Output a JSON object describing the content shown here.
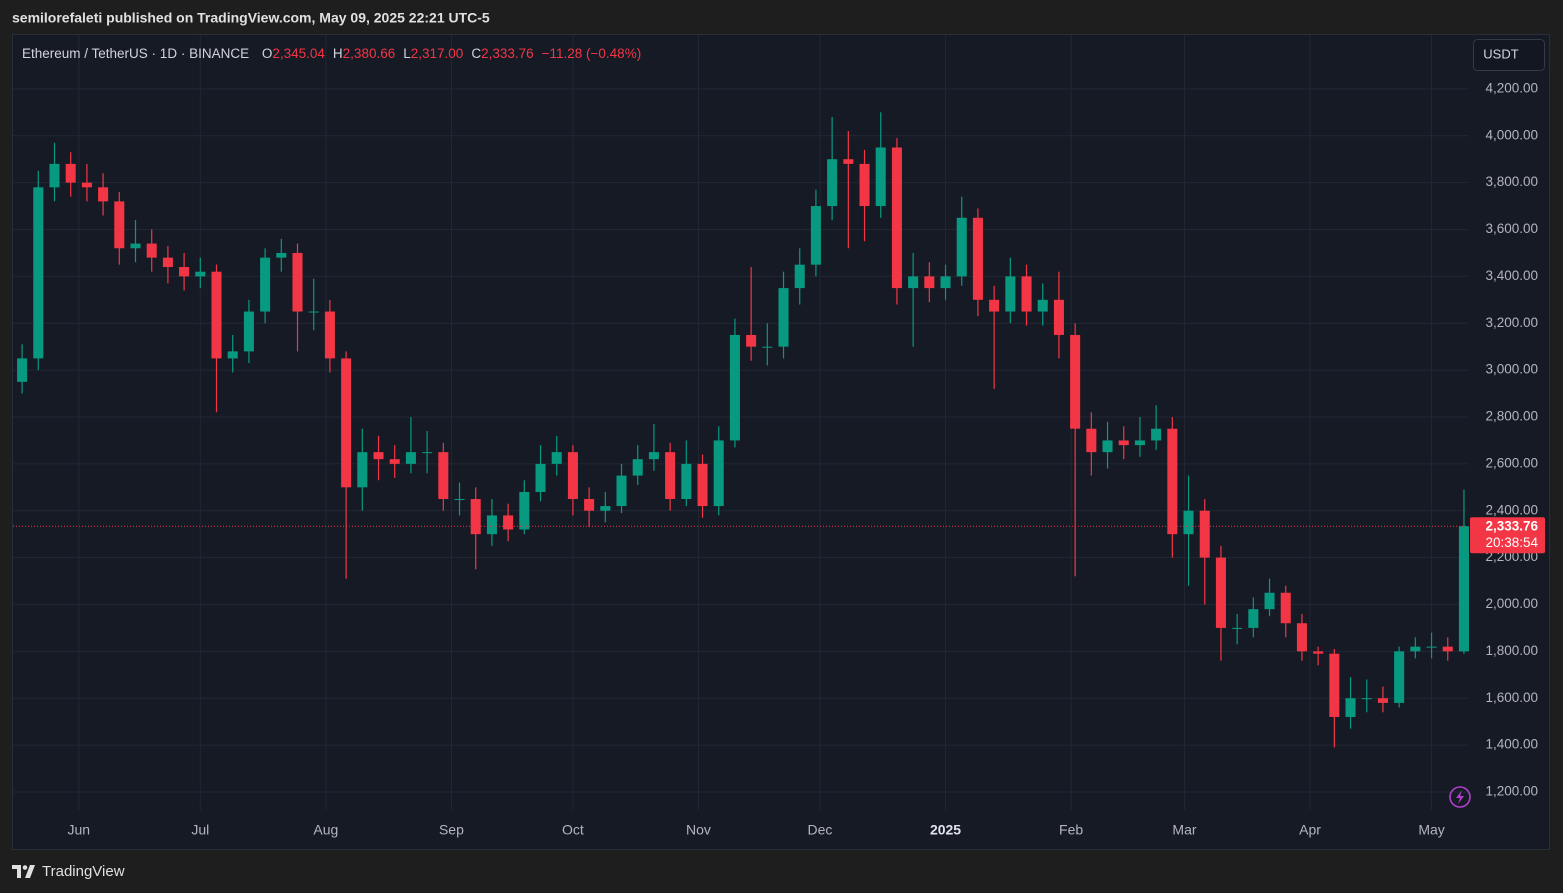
{
  "header": "semilorefaleti published on TradingView.com, May 09, 2025 22:21 UTC-5",
  "footer": "TradingView",
  "chart_data": {
    "type": "candlestick",
    "legend": {
      "symbol": "Ethereum / TetherUS · 1D · BINANCE",
      "ohlc": [
        {
          "key": "O",
          "value": 2345.04,
          "label": "2,345.04"
        },
        {
          "key": "H",
          "value": 2380.66,
          "label": "2,380.66"
        },
        {
          "key": "L",
          "value": 2317.0,
          "label": "2,317.00"
        },
        {
          "key": "C",
          "value": 2333.76,
          "label": "2,333.76"
        }
      ],
      "change": "−11.28 (−0.48%)"
    },
    "currency": "USDT",
    "countdown": "20:38:54",
    "up_color": "#089981",
    "down_color": "#f23645",
    "grid": true,
    "xlim": [
      0,
      359
    ],
    "xticks": [
      {
        "value": 16,
        "label": "Jun"
      },
      {
        "value": 46,
        "label": "Jul"
      },
      {
        "value": 77,
        "label": "Aug"
      },
      {
        "value": 108,
        "label": "Sep"
      },
      {
        "value": 138,
        "label": "Oct"
      },
      {
        "value": 169,
        "label": "Nov"
      },
      {
        "value": 199,
        "label": "Dec"
      },
      {
        "value": 230,
        "label": "2025"
      },
      {
        "value": 261,
        "label": "Feb"
      },
      {
        "value": 289,
        "label": "Mar"
      },
      {
        "value": 320,
        "label": "Apr"
      },
      {
        "value": 350,
        "label": "May"
      }
    ],
    "ylim": [
      1123,
      4430
    ],
    "yticks": [
      {
        "value": 1200,
        "label": "1,200.00"
      },
      {
        "value": 1400,
        "label": "1,400.00"
      },
      {
        "value": 1600,
        "label": "1,600.00"
      },
      {
        "value": 1800,
        "label": "1,800.00"
      },
      {
        "value": 2000,
        "label": "2,000.00"
      },
      {
        "value": 2200,
        "label": "2,200.00"
      },
      {
        "value": 2400,
        "label": "2,400.00"
      },
      {
        "value": 2600,
        "label": "2,600.00"
      },
      {
        "value": 2800,
        "label": "2,800.00"
      },
      {
        "value": 3000,
        "label": "3,000.00"
      },
      {
        "value": 3200,
        "label": "3,200.00"
      },
      {
        "value": 3400,
        "label": "3,400.00"
      },
      {
        "value": 3600,
        "label": "3,600.00"
      },
      {
        "value": 3800,
        "label": "3,800.00"
      },
      {
        "value": 4000,
        "label": "4,000.00"
      },
      {
        "value": 4200,
        "label": "4,200.00"
      }
    ],
    "candles": {
      "x": [
        2,
        6,
        10,
        14,
        18,
        22,
        26,
        30,
        34,
        38,
        42,
        46,
        50,
        54,
        58,
        62,
        66,
        70,
        74,
        78,
        82,
        86,
        90,
        94,
        98,
        102,
        106,
        110,
        114,
        118,
        122,
        126,
        130,
        134,
        138,
        142,
        146,
        150,
        154,
        158,
        162,
        166,
        170,
        174,
        178,
        182,
        186,
        190,
        194,
        198,
        202,
        206,
        210,
        214,
        218,
        222,
        226,
        230,
        234,
        238,
        242,
        246,
        250,
        254,
        258,
        262,
        266,
        270,
        274,
        278,
        282,
        286,
        290,
        294,
        298,
        302,
        306,
        310,
        314,
        318,
        322,
        326,
        330,
        334,
        338,
        342,
        346,
        350,
        354,
        358
      ],
      "open": [
        2950,
        3050,
        3780,
        3880,
        3800,
        3780,
        3720,
        3520,
        3540,
        3480,
        3440,
        3400,
        3420,
        3050,
        3080,
        3250,
        3480,
        3500,
        3250,
        3250,
        3050,
        2500,
        2650,
        2620,
        2600,
        2650,
        2650,
        2450,
        2450,
        2300,
        2380,
        2320,
        2480,
        2600,
        2650,
        2450,
        2400,
        2420,
        2550,
        2620,
        2650,
        2450,
        2600,
        2420,
        2700,
        3150,
        3100,
        3100,
        3350,
        3450,
        3700,
        3900,
        3880,
        3700,
        3950,
        3350,
        3400,
        3350,
        3400,
        3650,
        3300,
        3250,
        3400,
        3250,
        3300,
        3150,
        2750,
        2650,
        2700,
        2680,
        2700,
        2750,
        2300,
        2400,
        2200,
        1900,
        1900,
        1980,
        2050,
        1920,
        1800,
        1790,
        1520,
        1600,
        1600,
        1580,
        1800,
        1820,
        1820,
        1800
      ],
      "high": [
        3110,
        3850,
        3970,
        3930,
        3880,
        3840,
        3760,
        3640,
        3600,
        3530,
        3500,
        3480,
        3450,
        3150,
        3300,
        3520,
        3560,
        3540,
        3390,
        3300,
        3080,
        2750,
        2720,
        2680,
        2800,
        2740,
        2690,
        2520,
        2500,
        2450,
        2430,
        2530,
        2680,
        2720,
        2680,
        2500,
        2480,
        2600,
        2680,
        2770,
        2690,
        2700,
        2640,
        2760,
        3220,
        3440,
        3200,
        3420,
        3520,
        3770,
        4080,
        4020,
        3940,
        4100,
        3990,
        3500,
        3460,
        3450,
        3740,
        3690,
        3360,
        3480,
        3450,
        3370,
        3420,
        3200,
        2820,
        2780,
        2760,
        2800,
        2850,
        2800,
        2550,
        2450,
        2250,
        1960,
        2030,
        2110,
        2080,
        1960,
        1820,
        1810,
        1690,
        1680,
        1650,
        1820,
        1860,
        1880,
        1860,
        2490
      ],
      "low": [
        2900,
        3000,
        3720,
        3740,
        3720,
        3660,
        3450,
        3460,
        3420,
        3370,
        3340,
        3350,
        2820,
        2990,
        3030,
        3200,
        3420,
        3080,
        3170,
        2990,
        2110,
        2400,
        2530,
        2540,
        2560,
        2560,
        2400,
        2380,
        2150,
        2250,
        2270,
        2300,
        2440,
        2550,
        2380,
        2330,
        2350,
        2390,
        2510,
        2570,
        2400,
        2420,
        2370,
        2380,
        2670,
        3040,
        3020,
        3050,
        3280,
        3400,
        3640,
        3520,
        3550,
        3650,
        3280,
        3100,
        3290,
        3300,
        3360,
        3230,
        2920,
        3200,
        3190,
        3190,
        3050,
        2120,
        2550,
        2580,
        2620,
        2630,
        2660,
        2200,
        2080,
        2000,
        1760,
        1830,
        1860,
        1950,
        1860,
        1760,
        1740,
        1390,
        1470,
        1540,
        1540,
        1560,
        1770,
        1770,
        1760,
        1790
      ],
      "close": [
        3050,
        3780,
        3880,
        3800,
        3780,
        3720,
        3520,
        3540,
        3480,
        3440,
        3400,
        3420,
        3050,
        3080,
        3250,
        3480,
        3500,
        3250,
        3250,
        3050,
        2500,
        2650,
        2620,
        2600,
        2650,
        2650,
        2450,
        2450,
        2300,
        2380,
        2320,
        2480,
        2600,
        2650,
        2450,
        2400,
        2420,
        2550,
        2620,
        2650,
        2450,
        2600,
        2420,
        2700,
        3150,
        3100,
        3100,
        3350,
        3450,
        3700,
        3900,
        3880,
        3700,
        3950,
        3350,
        3400,
        3350,
        3400,
        3650,
        3300,
        3250,
        3400,
        3250,
        3300,
        3150,
        2750,
        2650,
        2700,
        2680,
        2700,
        2750,
        2300,
        2400,
        2200,
        1900,
        1900,
        1980,
        2050,
        1920,
        1800,
        1790,
        1520,
        1600,
        1600,
        1580,
        1800,
        1820,
        1820,
        1800,
        2333.76
      ]
    }
  }
}
